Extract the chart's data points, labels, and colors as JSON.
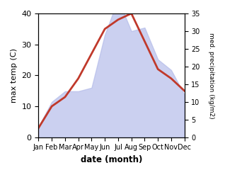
{
  "months": [
    "Jan",
    "Feb",
    "Mar",
    "Apr",
    "May",
    "Jun",
    "Jul",
    "Aug",
    "Sep",
    "Oct",
    "Nov",
    "Dec"
  ],
  "temperature": [
    3,
    10,
    13,
    19,
    27,
    35,
    38,
    40,
    31,
    22,
    19,
    15
  ],
  "precipitation": [
    3,
    10,
    13,
    13,
    14,
    29,
    39,
    30,
    31,
    22,
    19,
    12
  ],
  "temp_color": "#c0392b",
  "precip_fill_color": "#b0b8e8",
  "precip_fill_alpha": 0.65,
  "temp_ylim": [
    0,
    40
  ],
  "precip_ylim": [
    0,
    35
  ],
  "temp_yticks": [
    0,
    10,
    20,
    30,
    40
  ],
  "precip_yticks": [
    0,
    5,
    10,
    15,
    20,
    25,
    30,
    35
  ],
  "ylabel_left": "max temp (C)",
  "ylabel_right": "med. precipitation (kg/m2)",
  "xlabel": "date (month)",
  "bg_color": "#ffffff"
}
